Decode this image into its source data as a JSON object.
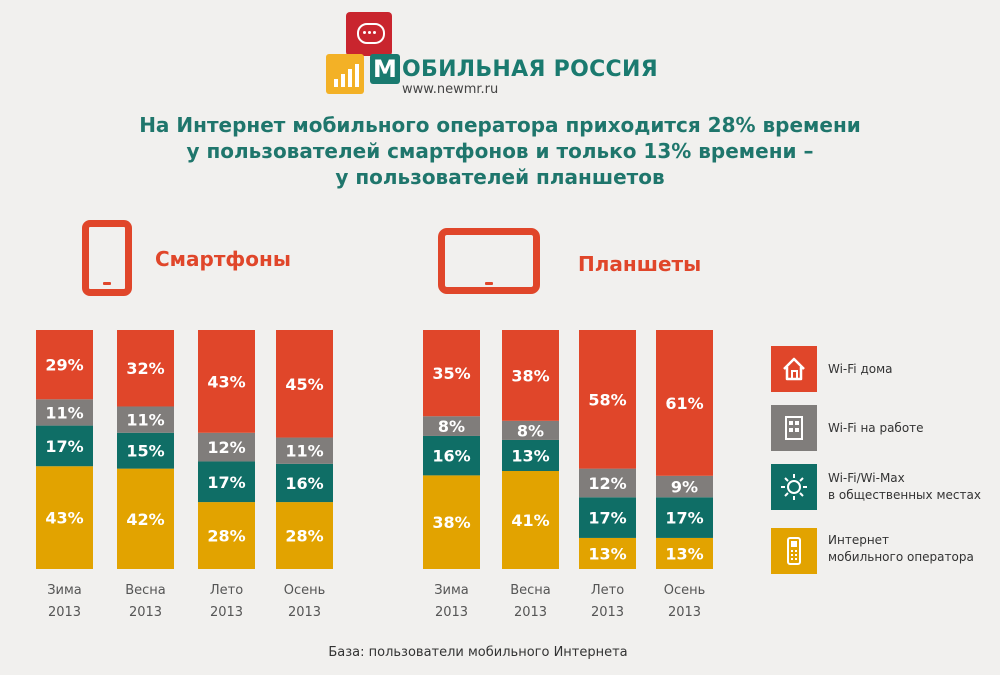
{
  "logo": {
    "name": "МОБИЛЬНАЯ РОССИЯ",
    "letter": "М",
    "name_rest": "ОБИЛЬНАЯ РОССИЯ",
    "url": "www.newmr.ru"
  },
  "headline": [
    "На Интернет мобильного оператора приходится 28% времени",
    "у пользователей смартфонов и только 13% времени –",
    "у пользователей планшетов"
  ],
  "footnote": "База: пользователи мобильного Интернета",
  "colors": {
    "wifi_home": "#e0462a",
    "wifi_work": "#807d7b",
    "wifi_public": "#0f6e66",
    "mobile_operator": "#e2a300",
    "device": "#e0462a",
    "headline": "#1f766c"
  },
  "legend": [
    {
      "key": "wifi_home",
      "icon": "house-icon",
      "lines": [
        "Wi-Fi дома"
      ]
    },
    {
      "key": "wifi_work",
      "icon": "office-building-icon",
      "lines": [
        "Wi-Fi на работе"
      ]
    },
    {
      "key": "wifi_public",
      "icon": "sun-icon",
      "lines": [
        "Wi-Fi/Wi-Max",
        "в общественных местах"
      ]
    },
    {
      "key": "mobile_operator",
      "icon": "mobile-phone-icon",
      "lines": [
        "Интернет",
        "мобильного оператора"
      ]
    }
  ],
  "chart_data": [
    {
      "type": "bar",
      "stacked": true,
      "percent": true,
      "title": "Смартфоны",
      "icon": "smartphone-icon",
      "categories": [
        [
          "Зима",
          "2013"
        ],
        [
          "Весна",
          "2013"
        ],
        [
          "Лето",
          "2013"
        ],
        [
          "Осень",
          "2013"
        ]
      ],
      "series": [
        {
          "key": "mobile_operator",
          "name": "Интернет мобильного оператора",
          "values": [
            43,
            42,
            28,
            28
          ]
        },
        {
          "key": "wifi_public",
          "name": "Wi-Fi/Wi-Max в общественных местах",
          "values": [
            17,
            15,
            17,
            16
          ]
        },
        {
          "key": "wifi_work",
          "name": "Wi-Fi на работе",
          "values": [
            11,
            11,
            12,
            11
          ]
        },
        {
          "key": "wifi_home",
          "name": "Wi-Fi дома",
          "values": [
            29,
            32,
            43,
            45
          ]
        }
      ]
    },
    {
      "type": "bar",
      "stacked": true,
      "percent": true,
      "title": "Планшеты",
      "icon": "tablet-icon",
      "categories": [
        [
          "Зима",
          "2013"
        ],
        [
          "Весна",
          "2013"
        ],
        [
          "Лето",
          "2013"
        ],
        [
          "Осень",
          "2013"
        ]
      ],
      "series": [
        {
          "key": "mobile_operator",
          "name": "Интернет мобильного оператора",
          "values": [
            38,
            41,
            13,
            13
          ]
        },
        {
          "key": "wifi_public",
          "name": "Wi-Fi/Wi-Max в общественных местах",
          "values": [
            16,
            13,
            17,
            17
          ]
        },
        {
          "key": "wifi_work",
          "name": "Wi-Fi на работе",
          "values": [
            8,
            8,
            12,
            9
          ]
        },
        {
          "key": "wifi_home",
          "name": "Wi-Fi дома",
          "values": [
            35,
            38,
            58,
            61
          ]
        }
      ]
    }
  ]
}
